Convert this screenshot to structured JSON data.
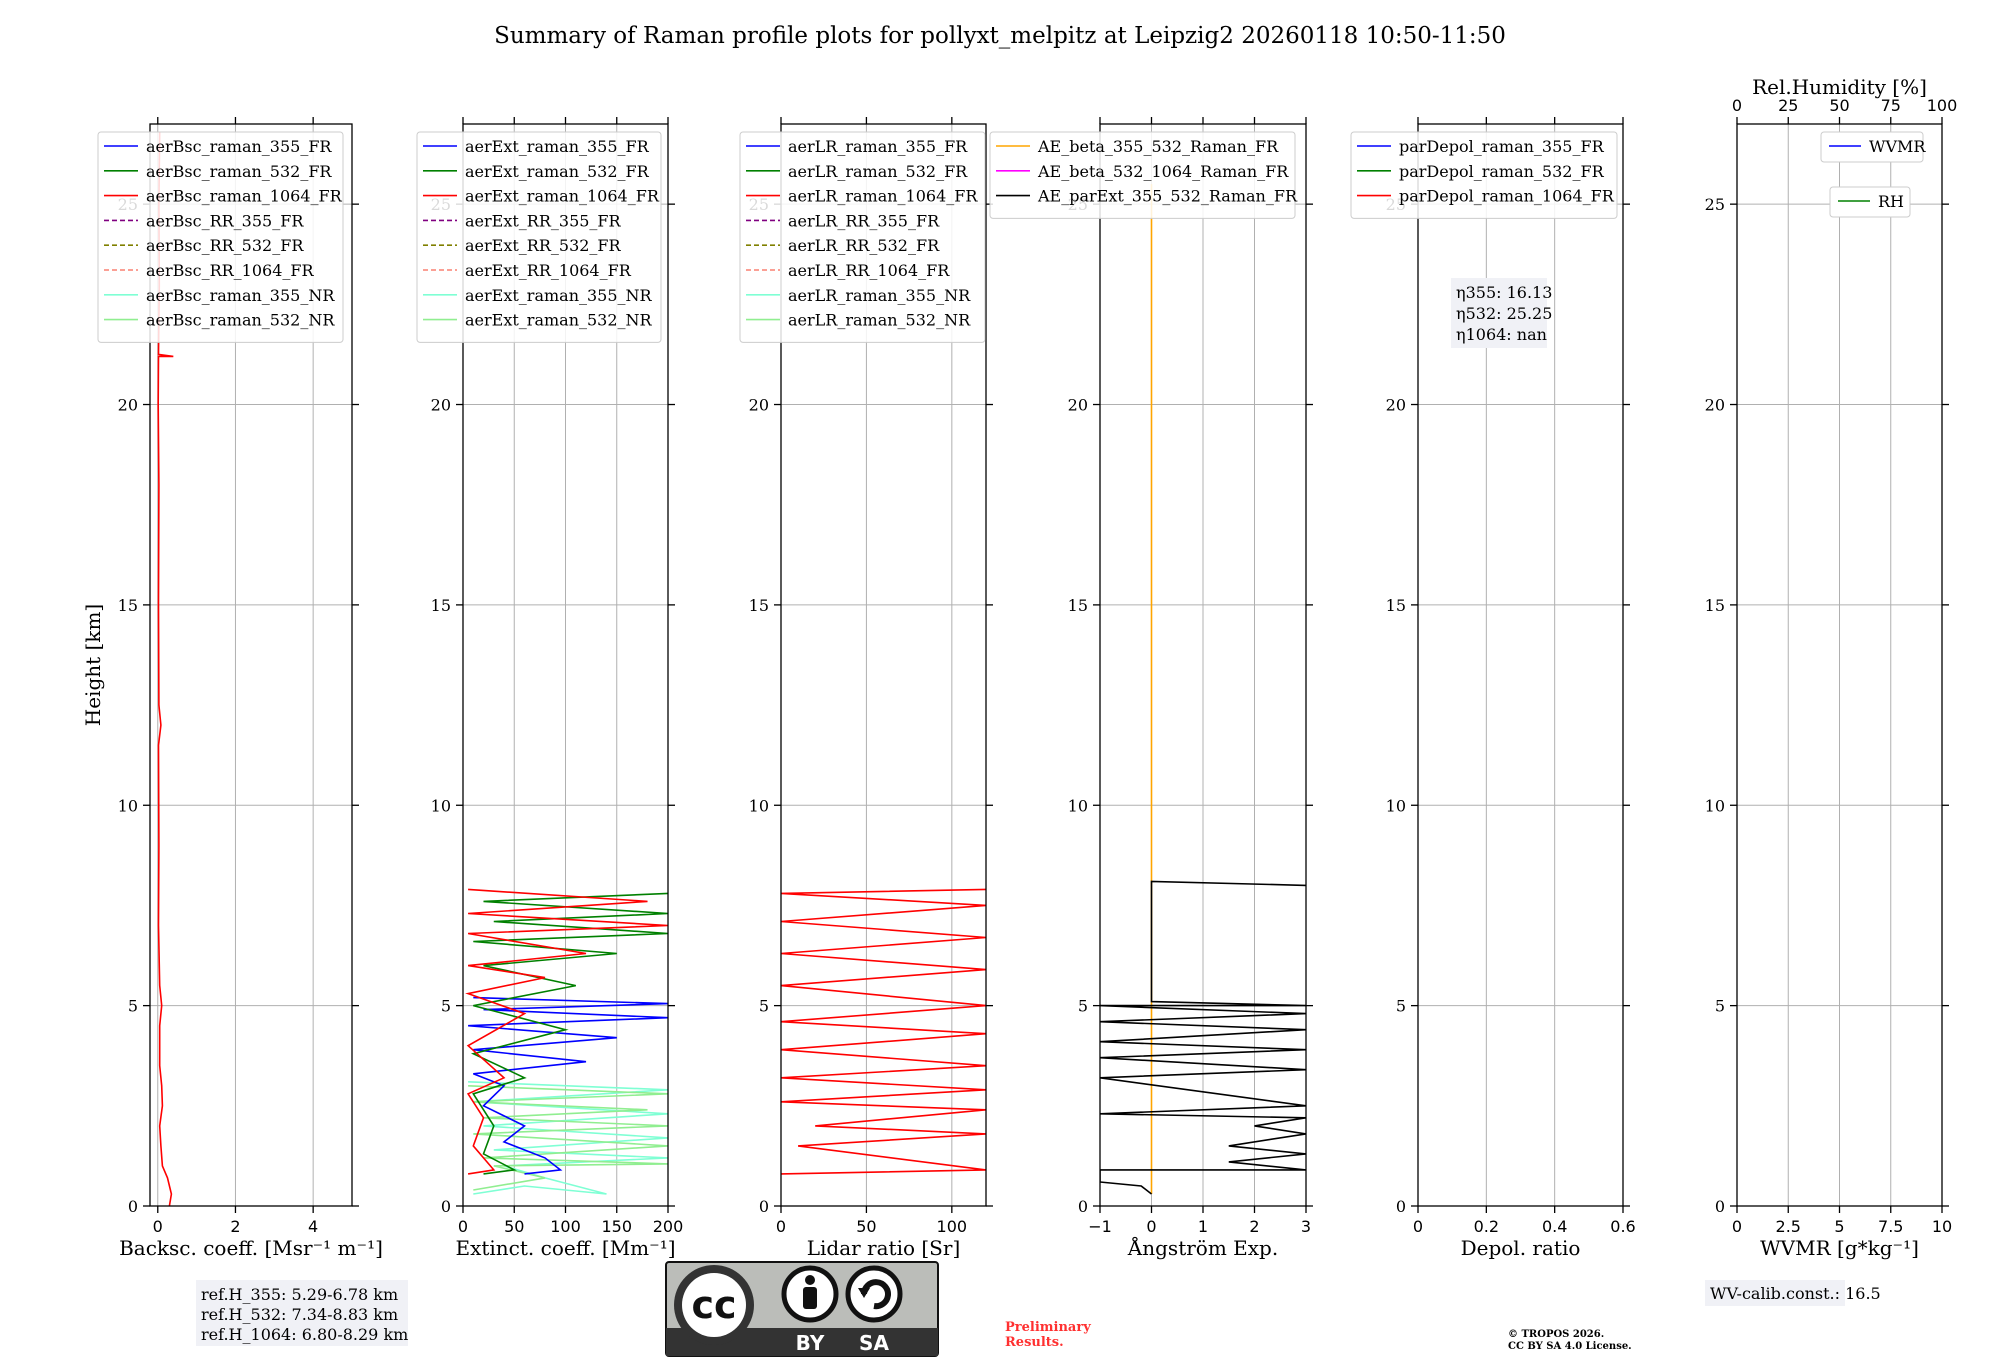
{
  "figure_title": "Summary of Raman profile plots for pollyxt_melpitz at Leipzig2 20260118 10:50-11:50",
  "chart_data": [
    {
      "type": "line",
      "name": "backscatter",
      "xlabel": "Backsc. coeff. [Msr⁻¹ m⁻¹]",
      "ylabel": "Height [km]",
      "xlim": [
        -0.2,
        5
      ],
      "ylim": [
        0,
        27
      ],
      "xticks": [
        0,
        2,
        4
      ],
      "yticks": [
        0,
        5,
        10,
        15,
        20,
        25
      ],
      "legend": [
        {
          "name": "aerBsc_raman_355_FR",
          "color": "#0000ff",
          "dash": false
        },
        {
          "name": "aerBsc_raman_532_FR",
          "color": "#008000",
          "dash": false
        },
        {
          "name": "aerBsc_raman_1064_FR",
          "color": "#ff0000",
          "dash": false
        },
        {
          "name": "aerBsc_RR_355_FR",
          "color": "#800080",
          "dash": true
        },
        {
          "name": "aerBsc_RR_532_FR",
          "color": "#808000",
          "dash": true
        },
        {
          "name": "aerBsc_RR_1064_FR",
          "color": "#fa8072",
          "dash": true
        },
        {
          "name": "aerBsc_raman_355_NR",
          "color": "#7fffd4",
          "dash": false
        },
        {
          "name": "aerBsc_raman_532_NR",
          "color": "#90ee90",
          "dash": false
        }
      ],
      "series": [
        {
          "name": "aerBsc_raman_1064_FR",
          "color": "#ff0000",
          "points": [
            [
              0.3,
              0.0
            ],
            [
              0.35,
              0.3
            ],
            [
              0.25,
              0.7
            ],
            [
              0.12,
              1.0
            ],
            [
              0.08,
              1.5
            ],
            [
              0.05,
              2.0
            ],
            [
              0.12,
              2.5
            ],
            [
              0.1,
              3.0
            ],
            [
              0.05,
              3.5
            ],
            [
              0.05,
              4.5
            ],
            [
              0.1,
              5.0
            ],
            [
              0.05,
              5.5
            ],
            [
              0.02,
              7.0
            ],
            [
              0.03,
              9.0
            ],
            [
              0.02,
              11.5
            ],
            [
              0.08,
              12.0
            ],
            [
              0.03,
              12.5
            ],
            [
              0.02,
              15.0
            ],
            [
              0.03,
              18.0
            ],
            [
              0.01,
              20.0
            ],
            [
              0.02,
              21.2
            ],
            [
              0.4,
              21.2
            ],
            [
              0.02,
              21.25
            ],
            [
              0.04,
              23.0
            ],
            [
              0.03,
              25.0
            ],
            [
              0.05,
              26.8
            ]
          ]
        }
      ],
      "annotation": [
        "ref.H_355: 5.29-6.78 km",
        "ref.H_532: 7.34-8.83 km",
        "ref.H_1064: 6.80-8.29 km"
      ]
    },
    {
      "type": "line",
      "name": "extinction",
      "xlabel": "Extinct. coeff. [Mm⁻¹]",
      "xlim": [
        0,
        200
      ],
      "ylim": [
        0,
        27
      ],
      "xticks": [
        0,
        50,
        100,
        150,
        200
      ],
      "yticks": [
        0,
        5,
        10,
        15,
        20,
        25
      ],
      "legend": [
        {
          "name": "aerExt_raman_355_FR",
          "color": "#0000ff",
          "dash": false
        },
        {
          "name": "aerExt_raman_532_FR",
          "color": "#008000",
          "dash": false
        },
        {
          "name": "aerExt_raman_1064_FR",
          "color": "#ff0000",
          "dash": false
        },
        {
          "name": "aerExt_RR_355_FR",
          "color": "#800080",
          "dash": true
        },
        {
          "name": "aerExt_RR_532_FR",
          "color": "#808000",
          "dash": true
        },
        {
          "name": "aerExt_RR_1064_FR",
          "color": "#fa8072",
          "dash": true
        },
        {
          "name": "aerExt_raman_355_NR",
          "color": "#7fffd4",
          "dash": false
        },
        {
          "name": "aerExt_raman_532_NR",
          "color": "#90ee90",
          "dash": false
        }
      ],
      "series": [
        {
          "name": "aerExt_raman_355_NR",
          "color": "#7fffd4",
          "points": [
            [
              10,
              0.3
            ],
            [
              60,
              0.5
            ],
            [
              140,
              0.3
            ],
            [
              80,
              0.7
            ],
            [
              40,
              1.0
            ],
            [
              200,
              1.2
            ],
            [
              30,
              1.4
            ],
            [
              200,
              1.7
            ],
            [
              20,
              2.0
            ],
            [
              200,
              2.3
            ],
            [
              10,
              2.6
            ],
            [
              200,
              2.9
            ],
            [
              5,
              3.1
            ]
          ]
        },
        {
          "name": "aerExt_raman_532_NR",
          "color": "#90ee90",
          "points": [
            [
              10,
              0.4
            ],
            [
              80,
              0.7
            ],
            [
              30,
              1.0
            ],
            [
              200,
              1.05
            ],
            [
              20,
              1.2
            ],
            [
              200,
              1.5
            ],
            [
              10,
              1.8
            ],
            [
              200,
              2.0
            ],
            [
              20,
              2.2
            ],
            [
              180,
              2.4
            ],
            [
              10,
              2.6
            ],
            [
              200,
              2.8
            ],
            [
              5,
              3.0
            ]
          ]
        },
        {
          "name": "aerExt_raman_355_FR",
          "color": "#0000ff",
          "points": [
            [
              60,
              0.8
            ],
            [
              95,
              0.9
            ],
            [
              80,
              1.2
            ],
            [
              40,
              1.6
            ],
            [
              60,
              2.0
            ],
            [
              20,
              2.5
            ],
            [
              40,
              3.0
            ],
            [
              10,
              3.3
            ],
            [
              120,
              3.6
            ],
            [
              10,
              3.9
            ],
            [
              150,
              4.2
            ],
            [
              5,
              4.5
            ],
            [
              200,
              4.7
            ],
            [
              20,
              4.9
            ],
            [
              200,
              5.05
            ],
            [
              10,
              5.2
            ]
          ]
        },
        {
          "name": "aerExt_raman_532_FR",
          "color": "#008000",
          "points": [
            [
              20,
              0.8
            ],
            [
              50,
              0.9
            ],
            [
              20,
              1.3
            ],
            [
              30,
              2.0
            ],
            [
              10,
              2.8
            ],
            [
              60,
              3.2
            ],
            [
              10,
              3.8
            ],
            [
              100,
              4.4
            ],
            [
              10,
              5.0
            ],
            [
              110,
              5.5
            ],
            [
              20,
              6.0
            ],
            [
              150,
              6.3
            ],
            [
              10,
              6.6
            ],
            [
              200,
              6.8
            ],
            [
              30,
              7.1
            ],
            [
              200,
              7.3
            ],
            [
              20,
              7.6
            ],
            [
              200,
              7.8
            ]
          ]
        },
        {
          "name": "aerExt_raman_1064_FR",
          "color": "#ff0000",
          "points": [
            [
              5,
              0.8
            ],
            [
              30,
              0.9
            ],
            [
              10,
              1.5
            ],
            [
              20,
              2.2
            ],
            [
              5,
              2.8
            ],
            [
              40,
              3.2
            ],
            [
              5,
              4.0
            ],
            [
              60,
              4.8
            ],
            [
              5,
              5.3
            ],
            [
              80,
              5.7
            ],
            [
              5,
              6.0
            ],
            [
              120,
              6.3
            ],
            [
              5,
              6.8
            ],
            [
              200,
              7.0
            ],
            [
              5,
              7.3
            ],
            [
              180,
              7.6
            ],
            [
              5,
              7.9
            ]
          ]
        }
      ]
    },
    {
      "type": "line",
      "name": "lidar_ratio",
      "xlabel": "Lidar ratio [Sr]",
      "xlim": [
        0,
        120
      ],
      "ylim": [
        0,
        27
      ],
      "xticks": [
        0,
        50,
        100
      ],
      "yticks": [
        0,
        5,
        10,
        15,
        20,
        25
      ],
      "legend": [
        {
          "name": "aerLR_raman_355_FR",
          "color": "#0000ff",
          "dash": false
        },
        {
          "name": "aerLR_raman_532_FR",
          "color": "#008000",
          "dash": false
        },
        {
          "name": "aerLR_raman_1064_FR",
          "color": "#ff0000",
          "dash": false
        },
        {
          "name": "aerLR_RR_355_FR",
          "color": "#800080",
          "dash": true
        },
        {
          "name": "aerLR_RR_532_FR",
          "color": "#808000",
          "dash": true
        },
        {
          "name": "aerLR_RR_1064_FR",
          "color": "#fa8072",
          "dash": true
        },
        {
          "name": "aerLR_raman_355_NR",
          "color": "#7fffd4",
          "dash": false
        },
        {
          "name": "aerLR_raman_532_NR",
          "color": "#90ee90",
          "dash": false
        }
      ],
      "series": [
        {
          "name": "aerLR_raman_1064_FR",
          "color": "#ff0000",
          "points": [
            [
              0,
              0.8
            ],
            [
              120,
              0.9
            ],
            [
              10,
              1.5
            ],
            [
              120,
              1.8
            ],
            [
              20,
              2.0
            ],
            [
              120,
              2.4
            ],
            [
              0,
              2.6
            ],
            [
              120,
              2.9
            ],
            [
              0,
              3.2
            ],
            [
              120,
              3.5
            ],
            [
              0,
              3.9
            ],
            [
              120,
              4.3
            ],
            [
              0,
              4.6
            ],
            [
              120,
              5.0
            ],
            [
              0,
              5.5
            ],
            [
              120,
              5.9
            ],
            [
              0,
              6.3
            ],
            [
              120,
              6.7
            ],
            [
              0,
              7.1
            ],
            [
              120,
              7.5
            ],
            [
              0,
              7.8
            ],
            [
              120,
              7.9
            ]
          ]
        }
      ]
    },
    {
      "type": "line",
      "name": "angstrom",
      "xlabel": "Ångström Exp.",
      "xlim": [
        -1,
        3
      ],
      "ylim": [
        0,
        27
      ],
      "xticks": [
        -1,
        0,
        1,
        2,
        3
      ],
      "yticks": [
        0,
        5,
        10,
        15,
        20,
        25
      ],
      "legend": [
        {
          "name": "AE_beta_355_532_Raman_FR",
          "color": "#ffa500",
          "dash": false
        },
        {
          "name": "AE_beta_532_1064_Raman_FR",
          "color": "#ff00ff",
          "dash": false
        },
        {
          "name": "AE_parExt_355_532_Raman_FR",
          "color": "#000000",
          "dash": false
        }
      ],
      "series": [
        {
          "name": "AE_beta_355_532_Raman_FR",
          "color": "#ffa500",
          "points": [
            [
              0,
              0.3
            ],
            [
              0,
              8.1
            ],
            [
              0,
              25.5
            ]
          ]
        },
        {
          "name": "AE_parExt_355_532_Raman_FR",
          "color": "#000000",
          "points": [
            [
              0,
              0.3
            ],
            [
              -0.2,
              0.5
            ],
            [
              -1,
              0.6
            ],
            [
              -1,
              0.9
            ],
            [
              3,
              0.9
            ],
            [
              1.5,
              1.1
            ],
            [
              3,
              1.3
            ],
            [
              1.5,
              1.5
            ],
            [
              3,
              1.8
            ],
            [
              2,
              2.0
            ],
            [
              3,
              2.2
            ],
            [
              -1,
              2.3
            ],
            [
              3,
              2.5
            ],
            [
              -1,
              3.2
            ],
            [
              3,
              3.4
            ],
            [
              -1,
              3.7
            ],
            [
              3,
              3.9
            ],
            [
              -1,
              4.1
            ],
            [
              3,
              4.4
            ],
            [
              -1,
              4.6
            ],
            [
              3,
              4.8
            ],
            [
              -1,
              5.0
            ],
            [
              3,
              5.0
            ],
            [
              0,
              5.1
            ],
            [
              0,
              8.1
            ],
            [
              3,
              8.0
            ]
          ]
        }
      ]
    },
    {
      "type": "line",
      "name": "depolarization",
      "xlabel": "Depol. ratio",
      "xlim": [
        0,
        0.6
      ],
      "ylim": [
        0,
        27
      ],
      "xticks": [
        0.0,
        0.2,
        0.4,
        0.6
      ],
      "yticks": [
        0,
        5,
        10,
        15,
        20,
        25
      ],
      "legend": [
        {
          "name": "parDepol_raman_355_FR",
          "color": "#0000ff",
          "dash": false
        },
        {
          "name": "parDepol_raman_532_FR",
          "color": "#008000",
          "dash": false
        },
        {
          "name": "parDepol_raman_1064_FR",
          "color": "#ff0000",
          "dash": false
        }
      ],
      "series": [],
      "annotation": [
        "η355: 16.13",
        "η532: 25.25",
        "η1064: nan"
      ]
    },
    {
      "type": "line",
      "name": "water_vapor",
      "xlabel": "WVMR [g*kg⁻¹]",
      "top_xlabel": "Rel.Humidity [%]",
      "xlim": [
        0,
        10
      ],
      "top_xlim": [
        0,
        100
      ],
      "ylim": [
        0,
        27
      ],
      "xticks": [
        0.0,
        2.5,
        5.0,
        7.5,
        10.0
      ],
      "top_xticks": [
        0,
        25,
        50,
        75,
        100
      ],
      "yticks": [
        0,
        5,
        10,
        15,
        20,
        25
      ],
      "legend": [
        {
          "name": "WVMR",
          "color": "#0000ff",
          "dash": false
        },
        {
          "name": "RH",
          "color": "#008000",
          "dash": false
        }
      ],
      "series": [],
      "annotation": [
        "WV-calib.const.: 16.5"
      ]
    }
  ],
  "license_badge": {
    "cc": "cc",
    "by": "BY",
    "sa": "SA"
  },
  "preliminary": [
    "Preliminary",
    "Results."
  ],
  "copyright": [
    "© TROPOS 2026.",
    "CC BY SA 4.0 License."
  ],
  "colors": {
    "badge_bg": "#bbbdb9",
    "badge_dark": "#333333",
    "preliminary": "#ff3030"
  }
}
